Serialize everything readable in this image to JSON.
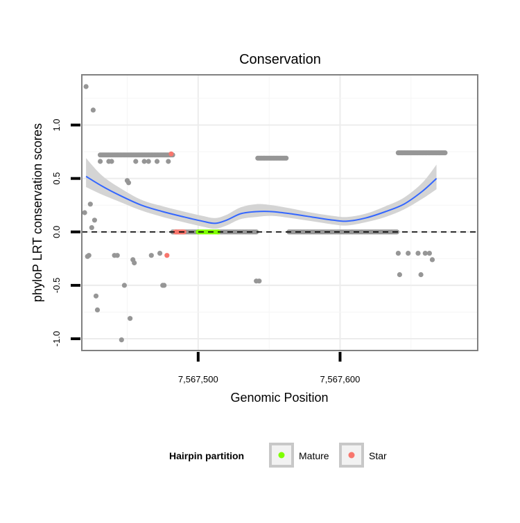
{
  "chart_data": {
    "type": "scatter",
    "title": "Conservation",
    "xlabel": "Genomic Position",
    "ylabel": "phyloP LRT conservation scores",
    "xlim": [
      7567418,
      7567697
    ],
    "ylim": [
      -1.11,
      1.47
    ],
    "x_ticks": [
      {
        "value": 7567500,
        "label": "7,567,500"
      },
      {
        "value": 7567600,
        "label": "7,567,600"
      }
    ],
    "y_ticks": [
      {
        "value": -1.0,
        "label": "-1.0"
      },
      {
        "value": -0.5,
        "label": "-0.5"
      },
      {
        "value": 0.0,
        "label": "0.0"
      },
      {
        "value": 0.5,
        "label": "0.5"
      },
      {
        "value": 1.0,
        "label": "1.0"
      }
    ],
    "reference_line": {
      "y": 0,
      "style": "dashed"
    },
    "grid": true,
    "legend": {
      "title": "Hairpin partition",
      "placement": "bottom",
      "entries": [
        {
          "label": "Mature",
          "color": "#7fff00"
        },
        {
          "label": "Star",
          "color": "#f8766d"
        }
      ]
    },
    "colors": {
      "default_points": "#969696",
      "mature": "#7fff00",
      "star": "#f8766d",
      "smooth_line": "#3366ff",
      "confidence_band": "#d4d4d4",
      "panel_border": "#808080"
    },
    "point_groups": [
      {
        "color": "default",
        "x_start": 7567431,
        "x_end": 7567482,
        "y": 0.72
      },
      {
        "color": "default",
        "x_start": 7567482,
        "x_end": 7567500,
        "y": 0.0
      },
      {
        "color": "default",
        "x_start": 7567514,
        "x_end": 7567541,
        "y": 0.0
      },
      {
        "color": "default",
        "x_start": 7567542,
        "x_end": 7567562,
        "y": 0.69
      },
      {
        "color": "default",
        "x_start": 7567564,
        "x_end": 7567640,
        "y": 0.0
      },
      {
        "color": "default",
        "x_start": 7567641,
        "x_end": 7567674,
        "y": 0.74
      },
      {
        "color": "mature",
        "x_start": 7567500,
        "x_end": 7567514,
        "y": 0.0
      },
      {
        "color": "star",
        "x_start": 7567484,
        "x_end": 7567490,
        "y": 0.0
      }
    ],
    "points": [
      {
        "x": 7567420,
        "y": 0.18,
        "color": "default"
      },
      {
        "x": 7567421,
        "y": 1.36,
        "color": "default"
      },
      {
        "x": 7567422,
        "y": -0.23,
        "color": "default"
      },
      {
        "x": 7567423,
        "y": -0.22,
        "color": "default"
      },
      {
        "x": 7567424,
        "y": 0.26,
        "color": "default"
      },
      {
        "x": 7567425,
        "y": 0.04,
        "color": "default"
      },
      {
        "x": 7567426,
        "y": 1.14,
        "color": "default"
      },
      {
        "x": 7567427,
        "y": 0.11,
        "color": "default"
      },
      {
        "x": 7567428,
        "y": -0.6,
        "color": "default"
      },
      {
        "x": 7567429,
        "y": -0.73,
        "color": "default"
      },
      {
        "x": 7567431,
        "y": 0.66,
        "color": "default"
      },
      {
        "x": 7567437,
        "y": 0.66,
        "color": "default"
      },
      {
        "x": 7567439,
        "y": 0.66,
        "color": "default"
      },
      {
        "x": 7567441,
        "y": -0.22,
        "color": "default"
      },
      {
        "x": 7567443,
        "y": -0.22,
        "color": "default"
      },
      {
        "x": 7567446,
        "y": -1.01,
        "color": "default"
      },
      {
        "x": 7567448,
        "y": -0.5,
        "color": "default"
      },
      {
        "x": 7567450,
        "y": 0.48,
        "color": "default"
      },
      {
        "x": 7567451,
        "y": 0.46,
        "color": "default"
      },
      {
        "x": 7567452,
        "y": -0.81,
        "color": "default"
      },
      {
        "x": 7567454,
        "y": -0.26,
        "color": "default"
      },
      {
        "x": 7567455,
        "y": -0.29,
        "color": "default"
      },
      {
        "x": 7567456,
        "y": 0.66,
        "color": "default"
      },
      {
        "x": 7567462,
        "y": 0.66,
        "color": "default"
      },
      {
        "x": 7567465,
        "y": 0.66,
        "color": "default"
      },
      {
        "x": 7567467,
        "y": -0.22,
        "color": "default"
      },
      {
        "x": 7567471,
        "y": 0.66,
        "color": "default"
      },
      {
        "x": 7567473,
        "y": -0.2,
        "color": "default"
      },
      {
        "x": 7567475,
        "y": -0.5,
        "color": "default"
      },
      {
        "x": 7567476,
        "y": -0.5,
        "color": "default"
      },
      {
        "x": 7567479,
        "y": 0.66,
        "color": "default"
      },
      {
        "x": 7567541,
        "y": -0.46,
        "color": "default"
      },
      {
        "x": 7567543,
        "y": -0.46,
        "color": "default"
      },
      {
        "x": 7567641,
        "y": -0.2,
        "color": "default"
      },
      {
        "x": 7567642,
        "y": -0.4,
        "color": "default"
      },
      {
        "x": 7567648,
        "y": -0.2,
        "color": "default"
      },
      {
        "x": 7567655,
        "y": -0.2,
        "color": "default"
      },
      {
        "x": 7567657,
        "y": -0.4,
        "color": "default"
      },
      {
        "x": 7567660,
        "y": -0.2,
        "color": "default"
      },
      {
        "x": 7567663,
        "y": -0.2,
        "color": "default"
      },
      {
        "x": 7567665,
        "y": -0.26,
        "color": "default"
      },
      {
        "x": 7567478,
        "y": -0.22,
        "color": "star"
      },
      {
        "x": 7567481,
        "y": 0.73,
        "color": "star"
      }
    ],
    "smooth": [
      {
        "x": 7567421,
        "y": 0.52,
        "lo": 0.42,
        "hi": 0.69
      },
      {
        "x": 7567432,
        "y": 0.43,
        "lo": 0.35,
        "hi": 0.53
      },
      {
        "x": 7567445,
        "y": 0.34,
        "lo": 0.28,
        "hi": 0.41
      },
      {
        "x": 7567460,
        "y": 0.25,
        "lo": 0.2,
        "hi": 0.3
      },
      {
        "x": 7567475,
        "y": 0.19,
        "lo": 0.14,
        "hi": 0.24
      },
      {
        "x": 7567490,
        "y": 0.14,
        "lo": 0.09,
        "hi": 0.19
      },
      {
        "x": 7567503,
        "y": 0.1,
        "lo": 0.05,
        "hi": 0.15
      },
      {
        "x": 7567512,
        "y": 0.08,
        "lo": 0.03,
        "hi": 0.13
      },
      {
        "x": 7567520,
        "y": 0.11,
        "lo": 0.06,
        "hi": 0.16
      },
      {
        "x": 7567530,
        "y": 0.17,
        "lo": 0.12,
        "hi": 0.23
      },
      {
        "x": 7567541,
        "y": 0.19,
        "lo": 0.14,
        "hi": 0.26
      },
      {
        "x": 7567552,
        "y": 0.19,
        "lo": 0.15,
        "hi": 0.25
      },
      {
        "x": 7567565,
        "y": 0.17,
        "lo": 0.13,
        "hi": 0.22
      },
      {
        "x": 7567580,
        "y": 0.14,
        "lo": 0.1,
        "hi": 0.18
      },
      {
        "x": 7567595,
        "y": 0.11,
        "lo": 0.07,
        "hi": 0.15
      },
      {
        "x": 7567605,
        "y": 0.1,
        "lo": 0.06,
        "hi": 0.14
      },
      {
        "x": 7567618,
        "y": 0.13,
        "lo": 0.09,
        "hi": 0.17
      },
      {
        "x": 7567632,
        "y": 0.19,
        "lo": 0.14,
        "hi": 0.24
      },
      {
        "x": 7567645,
        "y": 0.26,
        "lo": 0.21,
        "hi": 0.32
      },
      {
        "x": 7567658,
        "y": 0.38,
        "lo": 0.31,
        "hi": 0.46
      },
      {
        "x": 7567668,
        "y": 0.5,
        "lo": 0.4,
        "hi": 0.63
      }
    ]
  }
}
